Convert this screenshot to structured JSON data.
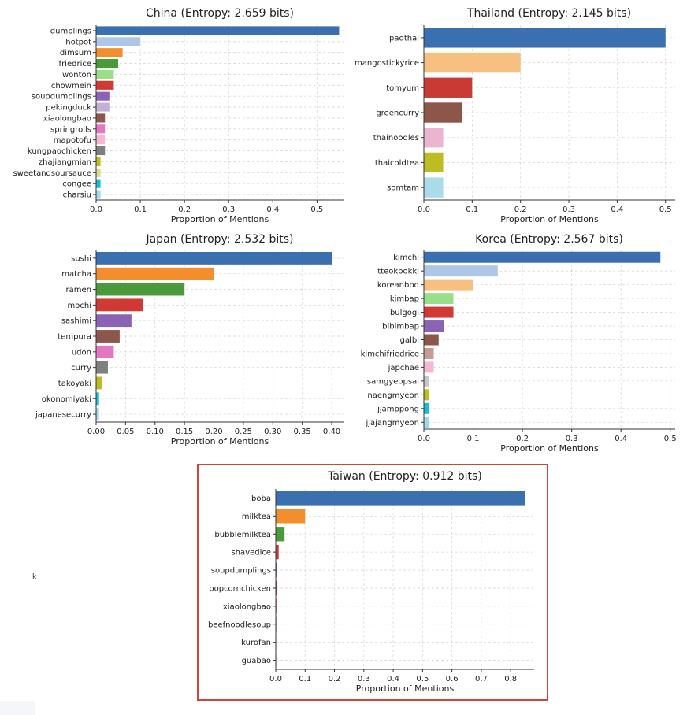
{
  "chart_data": [
    {
      "type": "bar",
      "orientation": "horizontal",
      "title": "China (Entropy: 2.659 bits)",
      "xlabel": "Proportion of Mentions",
      "xlim": [
        0,
        0.56
      ],
      "xticks": [
        "0.0",
        "0.1",
        "0.2",
        "0.3",
        "0.4",
        "0.5"
      ],
      "categories": [
        "dumplings",
        "hotpot",
        "dimsum",
        "friedrice",
        "wonton",
        "chowmein",
        "soupdumplings",
        "pekingduck",
        "xiaolongbao",
        "springrolls",
        "mapotofu",
        "kungpaochicken",
        "zhajiangmian",
        "sweetandsoursauce",
        "congee",
        "charsiu"
      ],
      "values": [
        0.55,
        0.1,
        0.06,
        0.05,
        0.04,
        0.04,
        0.03,
        0.03,
        0.02,
        0.02,
        0.02,
        0.02,
        0.01,
        0.01,
        0.01,
        0.01
      ],
      "colors": [
        "#3a6fb0",
        "#aec7e8",
        "#f28e2b",
        "#4a9a3c",
        "#98df8a",
        "#d13a34",
        "#8a63b5",
        "#c5b0d5",
        "#8c564b",
        "#e377c2",
        "#f7b6d2",
        "#7f7f7f",
        "#bcbd22",
        "#dbdb8d",
        "#17becf",
        "#9edae5"
      ],
      "grid": true
    },
    {
      "type": "bar",
      "orientation": "horizontal",
      "title": "Thailand (Entropy: 2.145 bits)",
      "xlabel": "Proportion of Mentions",
      "xlim": [
        0,
        0.52
      ],
      "xticks": [
        "0.0",
        "0.1",
        "0.2",
        "0.3",
        "0.4",
        "0.5"
      ],
      "categories": [
        "padthai",
        "mangostickyrice",
        "tomyum",
        "greencurry",
        "thainoodles",
        "thaicoldtea",
        "somtam"
      ],
      "values": [
        0.5,
        0.2,
        0.1,
        0.08,
        0.04,
        0.04,
        0.04
      ],
      "colors": [
        "#3a6fb0",
        "#f7bf80",
        "#c93a34",
        "#8c564b",
        "#ebb5cf",
        "#bcbd22",
        "#a9dbe8"
      ],
      "grid": true
    },
    {
      "type": "bar",
      "orientation": "horizontal",
      "title": "Japan (Entropy: 2.532 bits)",
      "xlabel": "Proportion of Mentions",
      "xlim": [
        0,
        0.42
      ],
      "xticks": [
        "0.00",
        "0.05",
        "0.10",
        "0.15",
        "0.20",
        "0.25",
        "0.30",
        "0.35",
        "0.40"
      ],
      "categories": [
        "sushi",
        "matcha",
        "ramen",
        "mochi",
        "sashimi",
        "tempura",
        "udon",
        "curry",
        "takoyaki",
        "okonomiyaki",
        "japanesecurry"
      ],
      "values": [
        0.4,
        0.2,
        0.15,
        0.08,
        0.06,
        0.04,
        0.03,
        0.02,
        0.01,
        0.005,
        0.005
      ],
      "colors": [
        "#3a6fb0",
        "#f28e2b",
        "#4a9a3c",
        "#d13a34",
        "#8a63b5",
        "#8c564b",
        "#e377c2",
        "#7f7f7f",
        "#bcbd22",
        "#17becf",
        "#9edae5"
      ],
      "grid": true
    },
    {
      "type": "bar",
      "orientation": "horizontal",
      "title": "Korea (Entropy: 2.567 bits)",
      "xlabel": "Proportion of Mentions",
      "xlim": [
        0,
        0.51
      ],
      "xticks": [
        "0.0",
        "0.1",
        "0.2",
        "0.3",
        "0.4",
        "0.5"
      ],
      "categories": [
        "kimchi",
        "tteokbokki",
        "koreanbbq",
        "kimbap",
        "bulgogi",
        "bibimbap",
        "galbi",
        "kimchifriedrice",
        "japchae",
        "samgyeopsal",
        "naengmyeon",
        "jjamppong",
        "jjajangmyeon"
      ],
      "values": [
        0.48,
        0.15,
        0.1,
        0.06,
        0.06,
        0.04,
        0.03,
        0.02,
        0.02,
        0.01,
        0.01,
        0.01,
        0.01
      ],
      "colors": [
        "#3a6fb0",
        "#aec7e8",
        "#f7bf80",
        "#98df8a",
        "#d13a34",
        "#8a63b5",
        "#8c564b",
        "#c49c94",
        "#f7b6d2",
        "#c7c7c7",
        "#bcbd22",
        "#17becf",
        "#9edae5"
      ],
      "grid": true
    },
    {
      "type": "bar",
      "orientation": "horizontal",
      "title": "Taiwan (Entropy: 0.912 bits)",
      "xlabel": "Proportion of Mentions",
      "xlim": [
        0,
        0.88
      ],
      "xticks": [
        "0.0",
        "0.1",
        "0.2",
        "0.3",
        "0.4",
        "0.5",
        "0.6",
        "0.7",
        "0.8"
      ],
      "categories": [
        "boba",
        "milktea",
        "bubblemilktea",
        "shavedice",
        "soupdumplings",
        "popcornchicken",
        "xiaolongbao",
        "beefnoodlesoup",
        "kurofan",
        "guabao"
      ],
      "values": [
        0.85,
        0.1,
        0.03,
        0.01,
        0.005,
        0.004,
        0.003,
        0.002,
        0.001,
        0.001
      ],
      "colors": [
        "#3a6fb0",
        "#f28e2b",
        "#4a9a3c",
        "#d13a34",
        "#8a63b5",
        "#8c564b",
        "#e377c2",
        "#7f7f7f",
        "#bcbd22",
        "#17becf"
      ],
      "grid": true,
      "highlighted": true,
      "highlight_color": "#d0453a"
    }
  ],
  "stray_text": "k"
}
